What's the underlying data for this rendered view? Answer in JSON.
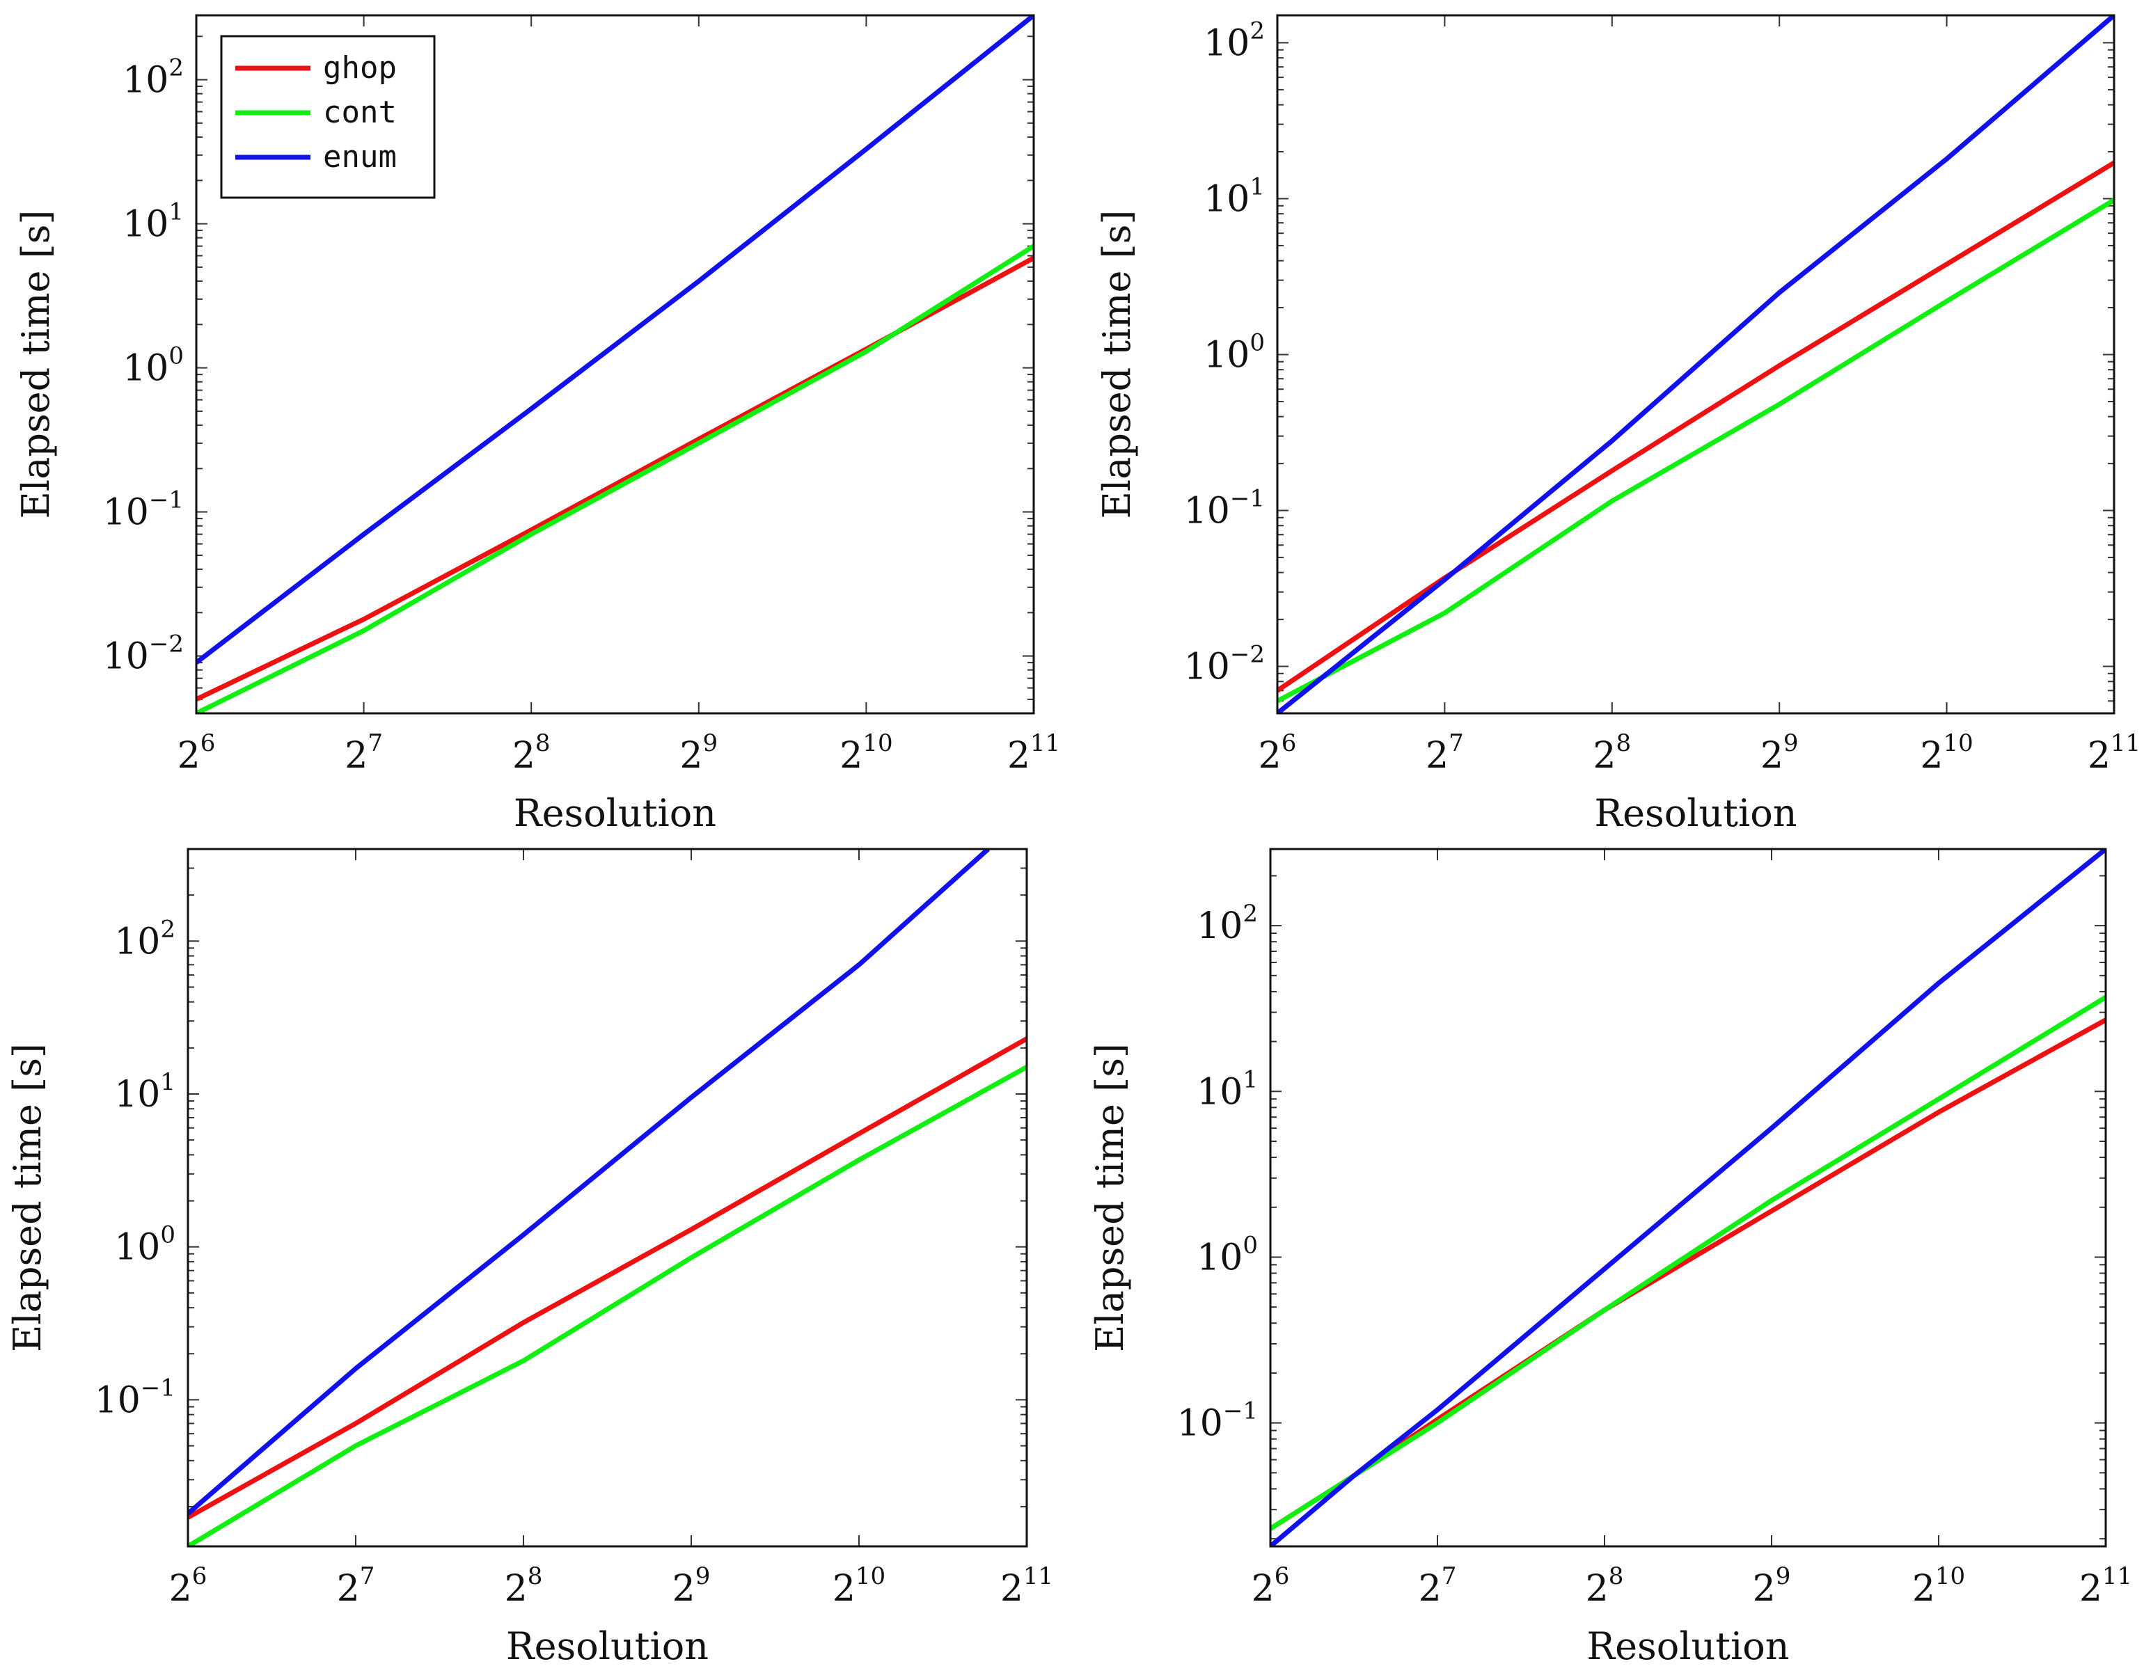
{
  "chart_data": [
    {
      "type": "line",
      "panel": "top-left",
      "xlabel": "Resolution",
      "ylabel": "Elapsed time [s]",
      "x_scale": "log2",
      "y_scale": "log10",
      "xlim_exp": [
        6,
        11
      ],
      "ylim": [
        0.004,
        280
      ],
      "x": [
        6,
        7,
        8,
        9,
        10,
        11
      ],
      "x_tick_labels": [
        {
          "base": "2",
          "exp": "6"
        },
        {
          "base": "2",
          "exp": "7"
        },
        {
          "base": "2",
          "exp": "8"
        },
        {
          "base": "2",
          "exp": "9"
        },
        {
          "base": "2",
          "exp": "10"
        },
        {
          "base": "2",
          "exp": "11"
        }
      ],
      "y_ticks": [
        {
          "value": 0.01,
          "base": "10",
          "exp": "−2"
        },
        {
          "value": 0.1,
          "base": "10",
          "exp": "−1"
        },
        {
          "value": 1,
          "base": "10",
          "exp": "0"
        },
        {
          "value": 10,
          "base": "10",
          "exp": "1"
        },
        {
          "value": 100,
          "base": "10",
          "exp": "2"
        }
      ],
      "legend": {
        "position": "top-left",
        "entries": [
          "ghop",
          "cont",
          "enum"
        ]
      },
      "series": [
        {
          "name": "ghop",
          "color": "#ee1111",
          "values": [
            0.005,
            0.018,
            0.075,
            0.32,
            1.35,
            5.8
          ]
        },
        {
          "name": "cont",
          "color": "#11ee11",
          "values": [
            0.004,
            0.015,
            0.07,
            0.3,
            1.3,
            7.0
          ]
        },
        {
          "name": "enum",
          "color": "#1111ee",
          "values": [
            0.009,
            0.07,
            0.52,
            4.0,
            33,
            280
          ]
        }
      ]
    },
    {
      "type": "line",
      "panel": "top-right",
      "xlabel": "Resolution",
      "ylabel": "Elapsed time [s]",
      "x_scale": "log2",
      "y_scale": "log10",
      "xlim_exp": [
        6,
        11
      ],
      "ylim": [
        0.005,
        150
      ],
      "x": [
        6,
        7,
        8,
        9,
        10,
        11
      ],
      "x_tick_labels": [
        {
          "base": "2",
          "exp": "6"
        },
        {
          "base": "2",
          "exp": "7"
        },
        {
          "base": "2",
          "exp": "8"
        },
        {
          "base": "2",
          "exp": "9"
        },
        {
          "base": "2",
          "exp": "10"
        },
        {
          "base": "2",
          "exp": "11"
        }
      ],
      "y_ticks": [
        {
          "value": 0.01,
          "base": "10",
          "exp": "−2"
        },
        {
          "value": 0.1,
          "base": "10",
          "exp": "−1"
        },
        {
          "value": 1,
          "base": "10",
          "exp": "0"
        },
        {
          "value": 10,
          "base": "10",
          "exp": "1"
        },
        {
          "value": 100,
          "base": "10",
          "exp": "2"
        }
      ],
      "series": [
        {
          "name": "ghop",
          "color": "#ee1111",
          "values": [
            0.007,
            0.037,
            0.18,
            0.85,
            3.8,
            17
          ]
        },
        {
          "name": "cont",
          "color": "#11ee11",
          "values": [
            0.006,
            0.022,
            0.115,
            0.48,
            2.2,
            9.8
          ]
        },
        {
          "name": "enum",
          "color": "#1111ee",
          "values": [
            0.005,
            0.036,
            0.28,
            2.5,
            18,
            150
          ]
        }
      ]
    },
    {
      "type": "line",
      "panel": "bottom-left",
      "xlabel": "Resolution",
      "ylabel": "Elapsed time [s]",
      "x_scale": "log2",
      "y_scale": "log10",
      "xlim_exp": [
        6,
        11
      ],
      "ylim": [
        0.011,
        400
      ],
      "x": [
        6,
        7,
        8,
        9,
        10,
        10.77
      ],
      "x_tick_labels": [
        {
          "base": "2",
          "exp": "6"
        },
        {
          "base": "2",
          "exp": "7"
        },
        {
          "base": "2",
          "exp": "8"
        },
        {
          "base": "2",
          "exp": "9"
        },
        {
          "base": "2",
          "exp": "10"
        },
        {
          "base": "2",
          "exp": "11"
        }
      ],
      "y_ticks": [
        {
          "value": 0.1,
          "base": "10",
          "exp": "−1"
        },
        {
          "value": 1,
          "base": "10",
          "exp": "0"
        },
        {
          "value": 10,
          "base": "10",
          "exp": "1"
        },
        {
          "value": 100,
          "base": "10",
          "exp": "2"
        }
      ],
      "series": [
        {
          "name": "ghop",
          "color": "#ee1111",
          "x": [
            6,
            7,
            8,
            9,
            10,
            11
          ],
          "values": [
            0.017,
            0.07,
            0.32,
            1.3,
            5.5,
            23
          ]
        },
        {
          "name": "cont",
          "color": "#11ee11",
          "x": [
            6,
            7,
            8,
            9,
            10,
            11
          ],
          "values": [
            0.011,
            0.05,
            0.18,
            0.85,
            3.7,
            15
          ]
        },
        {
          "name": "enum",
          "color": "#1111ee",
          "x": [
            6,
            7,
            8,
            9,
            10,
            10.77
          ],
          "values": [
            0.018,
            0.16,
            1.2,
            9.5,
            70,
            400
          ]
        }
      ]
    },
    {
      "type": "line",
      "panel": "bottom-right",
      "xlabel": "Resolution",
      "ylabel": "Elapsed time [s]",
      "x_scale": "log2",
      "y_scale": "log10",
      "xlim_exp": [
        6,
        11
      ],
      "ylim": [
        0.018,
        290
      ],
      "x": [
        6,
        6.5,
        7,
        8,
        9,
        10,
        11
      ],
      "x_tick_labels": [
        {
          "base": "2",
          "exp": "6"
        },
        {
          "base": "2",
          "exp": "7"
        },
        {
          "base": "2",
          "exp": "8"
        },
        {
          "base": "2",
          "exp": "9"
        },
        {
          "base": "2",
          "exp": "10"
        },
        {
          "base": "2",
          "exp": "11"
        }
      ],
      "y_ticks": [
        {
          "value": 0.1,
          "base": "10",
          "exp": "−1"
        },
        {
          "value": 1,
          "base": "10",
          "exp": "0"
        },
        {
          "value": 10,
          "base": "10",
          "exp": "1"
        },
        {
          "value": 100,
          "base": "10",
          "exp": "2"
        }
      ],
      "series": [
        {
          "name": "ghop",
          "color": "#ee1111",
          "x": [
            6,
            6.5,
            7,
            8,
            9,
            10,
            11
          ],
          "values": [
            0.023,
            0.048,
            0.105,
            0.48,
            1.9,
            7.5,
            27
          ]
        },
        {
          "name": "cont",
          "color": "#11ee11",
          "x": [
            6,
            6.5,
            7,
            8,
            9,
            10,
            11
          ],
          "values": [
            0.023,
            0.048,
            0.1,
            0.48,
            2.2,
            9.0,
            37
          ]
        },
        {
          "name": "enum",
          "color": "#1111ee",
          "x": [
            6,
            6.5,
            7,
            8,
            9,
            10,
            11
          ],
          "values": [
            0.018,
            0.048,
            0.12,
            0.85,
            6.0,
            45,
            290
          ]
        }
      ]
    }
  ]
}
